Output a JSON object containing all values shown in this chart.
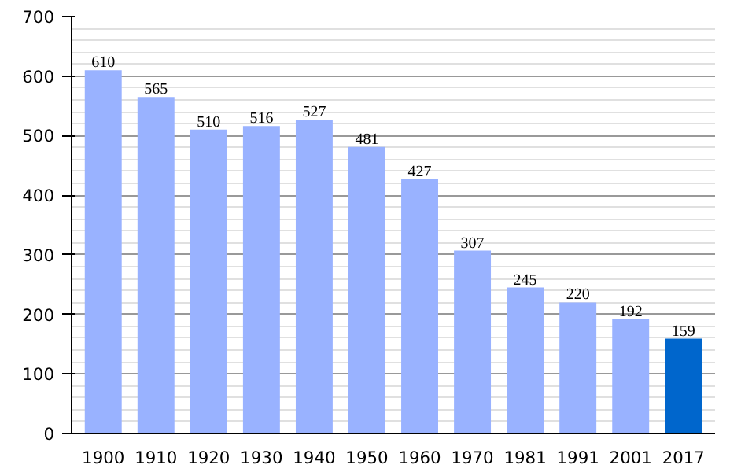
{
  "chart_data": {
    "type": "bar",
    "categories": [
      "1900",
      "1910",
      "1920",
      "1930",
      "1940",
      "1950",
      "1960",
      "1970",
      "1981",
      "1991",
      "2001",
      "2017"
    ],
    "values": [
      610,
      565,
      510,
      516,
      527,
      481,
      427,
      307,
      245,
      220,
      192,
      159
    ],
    "colors": [
      "#99b2ff",
      "#99b2ff",
      "#99b2ff",
      "#99b2ff",
      "#99b2ff",
      "#99b2ff",
      "#99b2ff",
      "#99b2ff",
      "#99b2ff",
      "#99b2ff",
      "#99b2ff",
      "#0066cc"
    ],
    "ylim": [
      0,
      700
    ],
    "yticks": [
      0,
      100,
      200,
      300,
      400,
      500,
      600,
      700
    ],
    "grid": "y",
    "data_labels": true
  }
}
